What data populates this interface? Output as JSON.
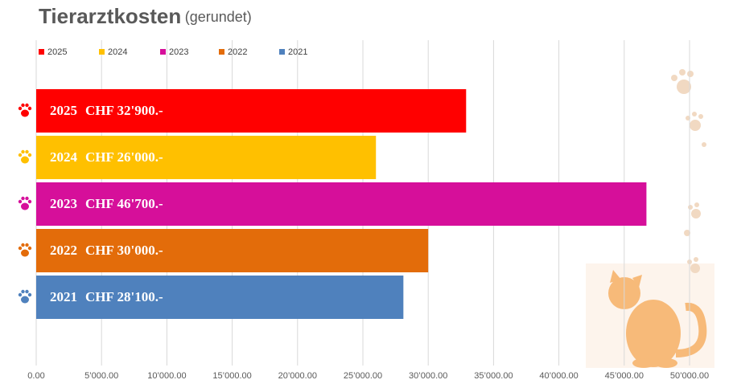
{
  "chart_data": {
    "type": "bar",
    "orientation": "horizontal",
    "title": "Tierarztkosten",
    "subtitle": "(gerundet)",
    "series": [
      {
        "name": "2025",
        "color": "#ff0000",
        "values": [
          32900
        ],
        "value_labels": [
          "CHF 32'900.-"
        ]
      },
      {
        "name": "2024",
        "color": "#ffc000",
        "values": [
          26000
        ],
        "value_labels": [
          "CHF 26'000.-"
        ]
      },
      {
        "name": "2023",
        "color": "#d60f9a",
        "values": [
          46700
        ],
        "value_labels": [
          "CHF 46'700.-"
        ]
      },
      {
        "name": "2022",
        "color": "#e36c0a",
        "values": [
          30000
        ],
        "value_labels": [
          "CHF 30'000.-"
        ]
      },
      {
        "name": "2021",
        "color": "#4f81bd",
        "values": [
          28100
        ],
        "value_labels": [
          "CHF 28'100.-"
        ]
      }
    ],
    "xlim": [
      0,
      50000
    ],
    "xticks": [
      {
        "value": 0,
        "label": "0.00"
      },
      {
        "value": 5000,
        "label": "5’000.00"
      },
      {
        "value": 10000,
        "label": "10’000.00"
      },
      {
        "value": 15000,
        "label": "15’000.00"
      },
      {
        "value": 20000,
        "label": "20’000.00"
      },
      {
        "value": 25000,
        "label": "25’000.00"
      },
      {
        "value": 30000,
        "label": "30’000.00"
      },
      {
        "value": 35000,
        "label": "35’000.00"
      },
      {
        "value": 40000,
        "label": "40’000.00"
      },
      {
        "value": 45000,
        "label": "45’000.00"
      },
      {
        "value": 50000,
        "label": "50’000.00"
      }
    ],
    "grid": true,
    "legend": "top"
  }
}
